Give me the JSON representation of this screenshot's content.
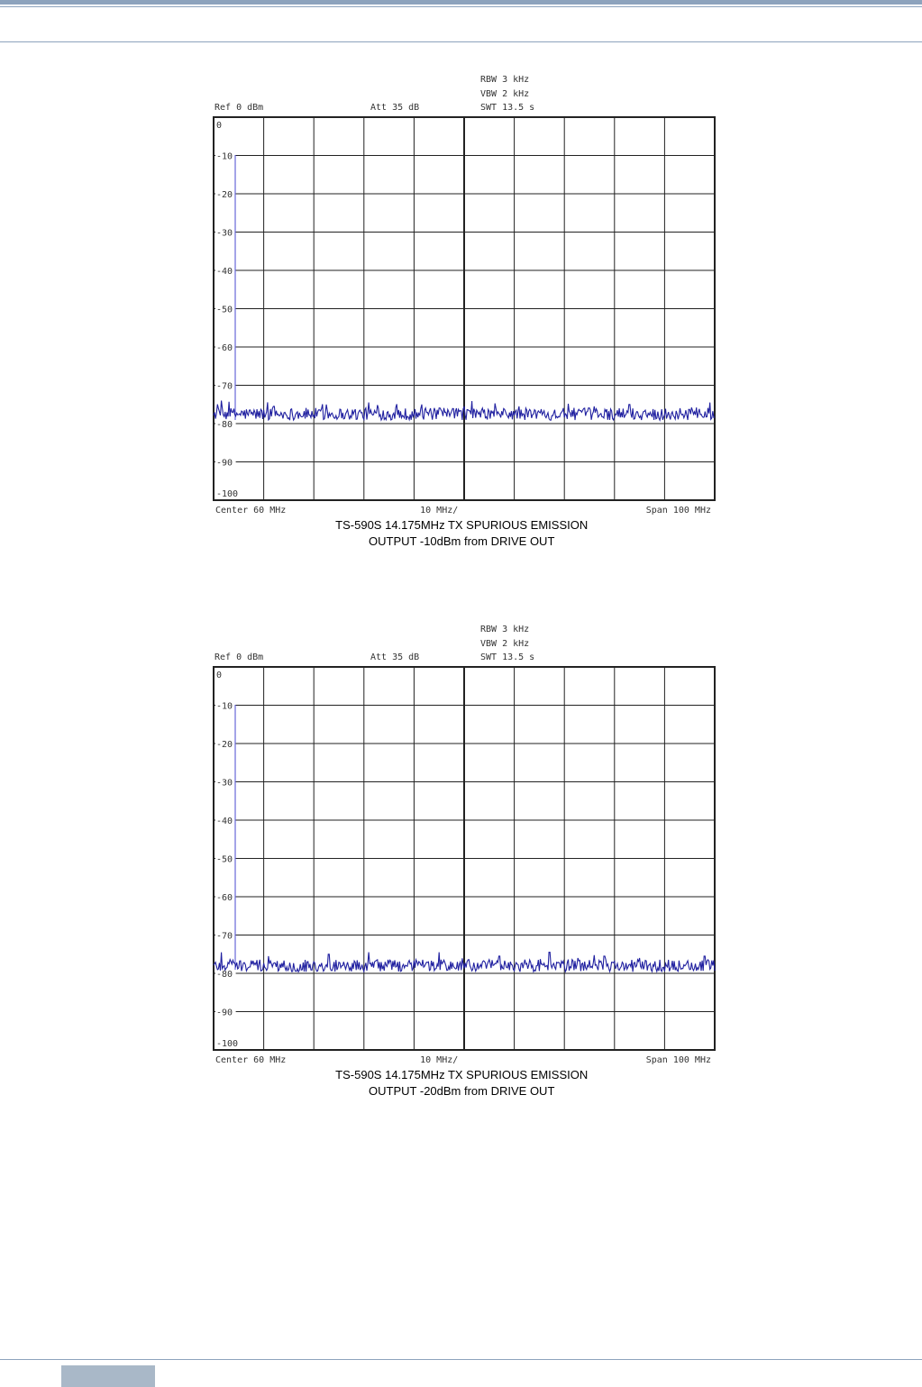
{
  "colors": {
    "header_bar": "#8da3bd",
    "trace": "#2020a0",
    "grid": "#222222",
    "footer_tab": "#a9b8c8"
  },
  "chart_data": [
    {
      "type": "line",
      "settings": {
        "rbw": "RBW 3 kHz",
        "vbw": "VBW 2 kHz",
        "swt": "SWT 13.5 s",
        "ref": "Ref   0 dBm",
        "att": "Att   35 dB"
      },
      "yticks": [
        "0",
        "-10",
        "-20",
        "-30",
        "-40",
        "-50",
        "-60",
        "-70",
        "-80",
        "-90",
        "-100"
      ],
      "ylim": [
        -100,
        0
      ],
      "xlim": [
        10,
        110
      ],
      "x_unit": "MHz",
      "x_bottom": {
        "center": "Center   60 MHz",
        "div": "10 MHz/",
        "span": "Span  100 MHz"
      },
      "grid": true,
      "caption_line1": "TS-590S 14.175MHz TX SPURIOUS EMISSION",
      "caption_line2": "OUTPUT -10dBm from DRIVE OUT",
      "noise_floor_dbm": -77.5,
      "noise_spread_db": 1.6,
      "peaks": [
        {
          "x": 11.5,
          "y": -74
        },
        {
          "x": 22.0,
          "y": -75.5
        },
        {
          "x": 32.5,
          "y": -75
        },
        {
          "x": 41.0,
          "y": -74.5
        },
        {
          "x": 51.5,
          "y": -75
        },
        {
          "x": 60.0,
          "y": -75.5
        },
        {
          "x": 71.0,
          "y": -75.5
        },
        {
          "x": 86.0,
          "y": -75.5
        },
        {
          "x": 93.0,
          "y": -75
        },
        {
          "x": 109.0,
          "y": -74.5
        }
      ]
    },
    {
      "type": "line",
      "settings": {
        "rbw": "RBW 3 kHz",
        "vbw": "VBW 2 kHz",
        "swt": "SWT 13.5 s",
        "ref": "Ref   0 dBm",
        "att": "Att   35 dB"
      },
      "yticks": [
        "0",
        "-10",
        "-20",
        "-30",
        "-40",
        "-50",
        "-60",
        "-70",
        "-80",
        "-90",
        "-100"
      ],
      "ylim": [
        -100,
        0
      ],
      "xlim": [
        10,
        110
      ],
      "x_unit": "MHz",
      "x_bottom": {
        "center": "Center   60 MHz",
        "div": "10 MHz/",
        "span": "Span  100 MHz"
      },
      "grid": true,
      "caption_line1": "TS-590S 14.175MHz TX SPURIOUS EMISSION",
      "caption_line2": "OUTPUT -20dBm from DRIVE OUT",
      "noise_floor_dbm": -78,
      "noise_spread_db": 1.6,
      "peaks": [
        {
          "x": 11.5,
          "y": -74.5
        },
        {
          "x": 21.0,
          "y": -75.5
        },
        {
          "x": 33.0,
          "y": -75
        },
        {
          "x": 41.0,
          "y": -74.5
        },
        {
          "x": 55.0,
          "y": -74.5
        },
        {
          "x": 67.0,
          "y": -75.5
        },
        {
          "x": 77.0,
          "y": -74.5
        },
        {
          "x": 88.0,
          "y": -75.5
        },
        {
          "x": 95.0,
          "y": -76
        },
        {
          "x": 108.0,
          "y": -75.5
        }
      ]
    }
  ]
}
